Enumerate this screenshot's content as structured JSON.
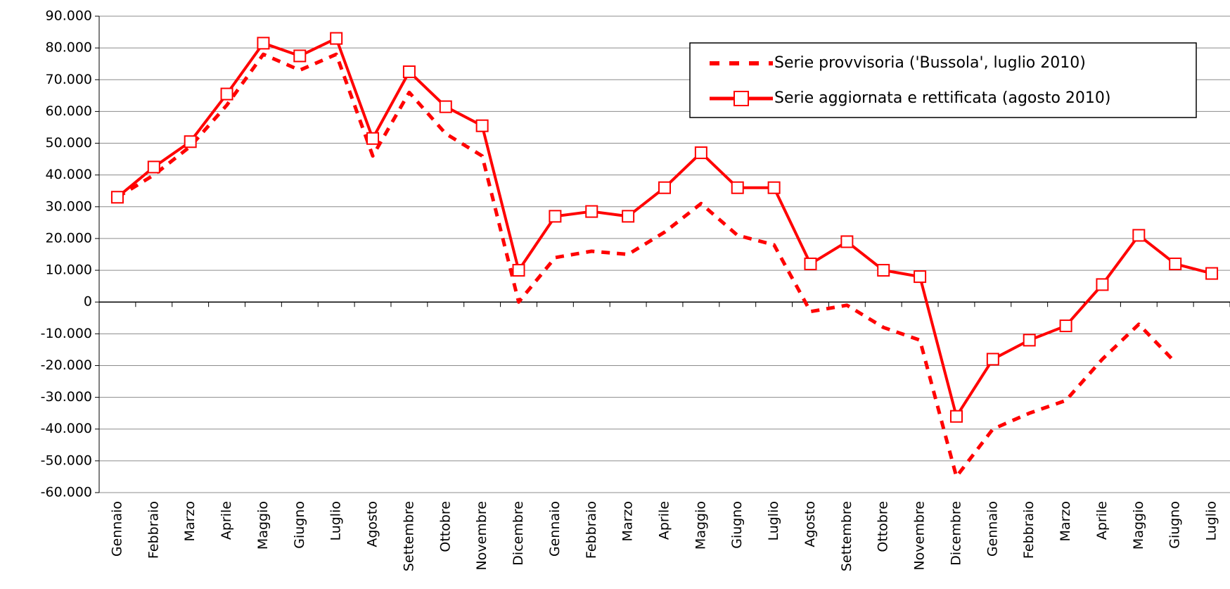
{
  "chart_data": {
    "type": "line",
    "categories": [
      "Gennaio",
      "Febbraio",
      "Marzo",
      "Aprile",
      "Maggio",
      "Giugno",
      "Luglio",
      "Agosto",
      "Settembre",
      "Ottobre",
      "Novembre",
      "Dicembre",
      "Gennaio",
      "Febbraio",
      "Marzo",
      "Aprile",
      "Maggio",
      "Giugno",
      "Luglio",
      "Agosto",
      "Settembre",
      "Ottobre",
      "Novembre",
      "Dicembre",
      "Gennaio",
      "Febbraio",
      "Marzo",
      "Aprile",
      "Maggio",
      "Giugno",
      "Luglio"
    ],
    "series": [
      {
        "name": "Serie provvisoria ('Bussola', luglio 2010)",
        "color": "#ff0000",
        "style": "dashed",
        "values": [
          33000,
          40000,
          49000,
          62000,
          78000,
          73000,
          78000,
          46000,
          66000,
          53000,
          46000,
          0,
          14000,
          16000,
          15000,
          22000,
          31000,
          21000,
          18000,
          -3000,
          -1000,
          -8000,
          -12000,
          -55000,
          -40000,
          -35000,
          -31000,
          -18000,
          -7000,
          -19000,
          null
        ]
      },
      {
        "name": "Serie aggiornata e rettificata (agosto 2010)",
        "color": "#ff0000",
        "style": "solid-square",
        "values": [
          33000,
          42500,
          50500,
          65500,
          81500,
          77500,
          83000,
          51500,
          72500,
          61500,
          55500,
          10000,
          27000,
          28500,
          27000,
          36000,
          47000,
          36000,
          36000,
          12000,
          19000,
          10000,
          8000,
          -36000,
          -18000,
          -12000,
          -7500,
          5500,
          21000,
          12000,
          9000
        ]
      }
    ],
    "ylim": [
      -60000,
      90000
    ],
    "yticks": [
      {
        "value": 90000,
        "label": "90.000"
      },
      {
        "value": 80000,
        "label": "80.000"
      },
      {
        "value": 70000,
        "label": "70.000"
      },
      {
        "value": 60000,
        "label": "60.000"
      },
      {
        "value": 50000,
        "label": "50.000"
      },
      {
        "value": 40000,
        "label": "40.000"
      },
      {
        "value": 30000,
        "label": "30.000"
      },
      {
        "value": 20000,
        "label": "20.000"
      },
      {
        "value": 10000,
        "label": "10.000"
      },
      0,
      {
        "value": -10000,
        "label": "-10.000"
      },
      {
        "value": -20000,
        "label": "-20.000"
      },
      {
        "value": -30000,
        "label": "-30.000"
      },
      {
        "value": -40000,
        "label": "-40.000"
      },
      {
        "value": -50000,
        "label": "-50.000"
      },
      {
        "value": -60000,
        "label": "-60.000"
      }
    ],
    "grid": true,
    "legend": "upper right"
  }
}
